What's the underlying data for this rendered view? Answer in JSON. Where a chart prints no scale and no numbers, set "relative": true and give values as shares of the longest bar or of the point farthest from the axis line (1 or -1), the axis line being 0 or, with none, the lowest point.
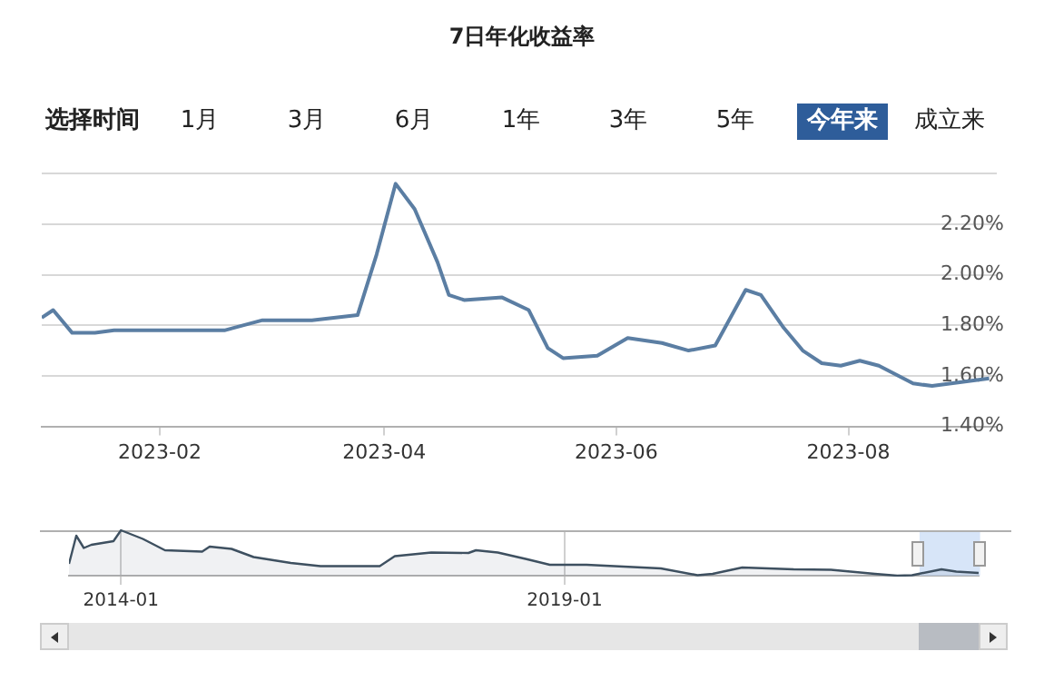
{
  "chart_data": [
    {
      "type": "line",
      "title": "7日年化收益率",
      "annotations": [
        "选择时间",
        "1月",
        "3月",
        "6月",
        "1年",
        "3年",
        "5年",
        "今年来",
        "成立来"
      ],
      "x": [
        "2023-01-01",
        "2023-01-04",
        "2023-01-09",
        "2023-01-15",
        "2023-01-20",
        "2023-01-30",
        "2023-02-09",
        "2023-02-18",
        "2023-02-28",
        "2023-03-13",
        "2023-03-25",
        "2023-03-30",
        "2023-04-04",
        "2023-04-09",
        "2023-04-15",
        "2023-04-18",
        "2023-04-22",
        "2023-05-02",
        "2023-05-09",
        "2023-05-14",
        "2023-05-18",
        "2023-05-27",
        "2023-06-04",
        "2023-06-13",
        "2023-06-20",
        "2023-06-27",
        "2023-07-05",
        "2023-07-09",
        "2023-07-15",
        "2023-07-20",
        "2023-07-25",
        "2023-07-30",
        "2023-08-04",
        "2023-08-09",
        "2023-08-18",
        "2023-08-23",
        "2023-08-28",
        "2023-09-02",
        "2023-09-07"
      ],
      "values": [
        1.83,
        1.86,
        1.77,
        1.77,
        1.78,
        1.78,
        1.78,
        1.78,
        1.82,
        1.82,
        1.84,
        2.08,
        2.36,
        2.26,
        2.05,
        1.92,
        1.9,
        1.91,
        1.86,
        1.71,
        1.67,
        1.68,
        1.75,
        1.73,
        1.7,
        1.72,
        1.94,
        1.92,
        1.79,
        1.7,
        1.65,
        1.64,
        1.66,
        1.64,
        1.57,
        1.56,
        1.57,
        1.58,
        1.59
      ],
      "color": "#5b7ea3",
      "marker": "none",
      "grid": "y",
      "xlim": [
        "2023-01-01",
        "2023-09-09"
      ],
      "xticks": [
        "2023-02",
        "2023-04",
        "2023-06",
        "2023-08"
      ],
      "ylim": [
        1.4,
        2.4
      ],
      "yticks": [
        {
          "value": 1.4,
          "label": "1.40%"
        },
        {
          "value": 1.6,
          "label": "1.60%"
        },
        {
          "value": 1.8,
          "label": "1.80%"
        },
        {
          "value": 2.0,
          "label": "2.00%"
        },
        {
          "value": 2.2,
          "label": "2.20%"
        },
        {
          "value": 2.4,
          "label": null
        }
      ]
    },
    {
      "type": "area",
      "relative": true,
      "x": [
        "2013-06",
        "2013-07",
        "2013-08",
        "2013-09",
        "2013-12",
        "2014-01",
        "2014-04",
        "2014-07",
        "2014-12",
        "2015-01",
        "2015-04",
        "2015-07",
        "2015-12",
        "2016-04",
        "2016-12",
        "2017-02",
        "2017-07",
        "2017-12",
        "2018-01",
        "2018-04",
        "2018-08",
        "2018-11",
        "2019-04",
        "2020-02",
        "2020-07",
        "2020-09",
        "2021-01",
        "2021-08",
        "2022-01",
        "2022-07",
        "2022-10",
        "2022-12",
        "2023-04",
        "2023-06",
        "2023-09"
      ],
      "values": [
        0.26,
        0.88,
        0.61,
        0.68,
        0.76,
        1,
        0.81,
        0.56,
        0.53,
        0.64,
        0.59,
        0.41,
        0.28,
        0.21,
        0.21,
        0.43,
        0.51,
        0.5,
        0.56,
        0.51,
        0.36,
        0.24,
        0.24,
        0.16,
        0.01,
        0.04,
        0.18,
        0.14,
        0.13,
        0.04,
        0,
        0.01,
        0.14,
        0.09,
        0.06
      ],
      "color": "#3e5060",
      "marker": "none",
      "grid": "x",
      "xlim": [
        "2013-06",
        "2023-09"
      ],
      "xticks": [
        "2014-01",
        "2019-01"
      ],
      "bands": [
        {
          "axis": "x",
          "from": "2023-01-01",
          "to": "2023-09-07",
          "color": "#c9dcf5"
        }
      ]
    }
  ]
}
